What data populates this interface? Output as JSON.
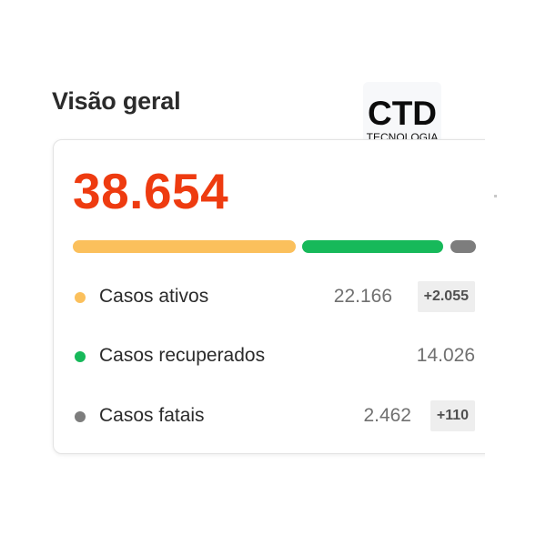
{
  "overview": {
    "title": "Visão geral",
    "total": "38.654",
    "colors": {
      "total": "#ee3b10",
      "active": "#fbc05c",
      "recovered": "#17b95a",
      "fatal": "#7d7d7d"
    },
    "distribution": {
      "active": 22166,
      "recovered": 14026,
      "fatal": 2462
    },
    "rows": [
      {
        "label": "Casos ativos",
        "value": "22.166",
        "delta": "+2.055"
      },
      {
        "label": "Casos recuperados",
        "value": "14.026",
        "delta": ""
      },
      {
        "label": "Casos fatais",
        "value": "2.462",
        "delta": "+110"
      }
    ]
  },
  "logo": {
    "main": "CTD",
    "sub": "TECNOLOGIA"
  }
}
